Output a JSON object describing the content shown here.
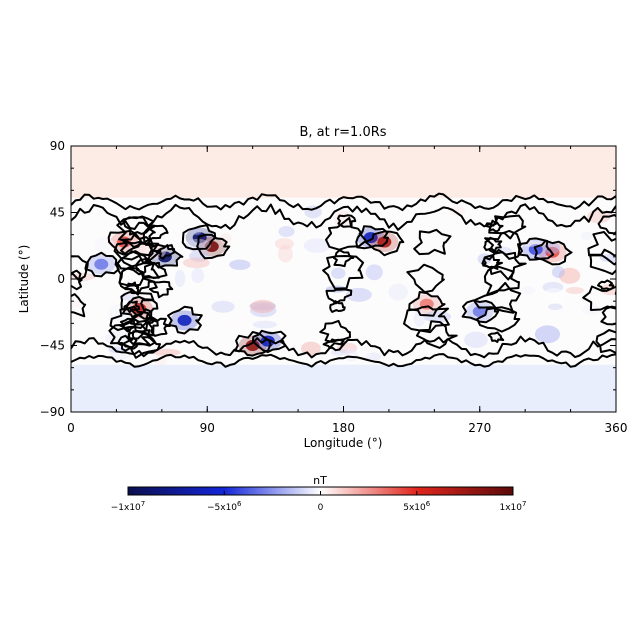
{
  "chart_data": {
    "type": "heatmap",
    "title": "B, at r=1.0Rs",
    "xlabel": "Longitude (°)",
    "ylabel": "Latitude (°)",
    "xlim": [
      0,
      360
    ],
    "ylim": [
      -90,
      90
    ],
    "xticks": [
      0,
      90,
      180,
      270,
      360
    ],
    "yticks": [
      -90,
      -45,
      0,
      45,
      90
    ],
    "colorbar": {
      "label": "nT",
      "range": [
        -10000000,
        10000000
      ],
      "ticks": [
        {
          "value": -10000000,
          "label": "−1x10",
          "exp": "7"
        },
        {
          "value": -5000000,
          "label": "−5x10",
          "exp": "6"
        },
        {
          "value": 0,
          "label": "0",
          "exp": ""
        },
        {
          "value": 5000000,
          "label": "5x10",
          "exp": "6"
        },
        {
          "value": 10000000,
          "label": "1x10",
          "exp": "7"
        }
      ],
      "colors": [
        "#0b0f4e",
        "#1326d8",
        "#ffffff",
        "#e0261d",
        "#5a0a0a"
      ]
    },
    "features": [
      {
        "lon": 62,
        "lat": 15,
        "value": -9000000
      },
      {
        "lon": 85,
        "lat": 28,
        "value": -9000000
      },
      {
        "lon": 93,
        "lat": 22,
        "value": 9000000
      },
      {
        "lon": 120,
        "lat": -45,
        "value": 8000000
      },
      {
        "lon": 130,
        "lat": -42,
        "value": -6000000
      },
      {
        "lon": 75,
        "lat": -28,
        "value": -6000000
      },
      {
        "lon": 45,
        "lat": -20,
        "value": 6000000
      },
      {
        "lon": 35,
        "lat": 25,
        "value": 4000000
      },
      {
        "lon": 198,
        "lat": 28,
        "value": -6000000
      },
      {
        "lon": 207,
        "lat": 25,
        "value": 7000000
      },
      {
        "lon": 235,
        "lat": -17,
        "value": 3000000
      },
      {
        "lon": 318,
        "lat": 18,
        "value": 4000000
      },
      {
        "lon": 307,
        "lat": 20,
        "value": -4000000
      },
      {
        "lon": 20,
        "lat": 10,
        "value": -3000000
      },
      {
        "lon": 270,
        "lat": -22,
        "value": -3000000
      },
      {
        "lon": 180,
        "lat": 80,
        "value": 1500000
      },
      {
        "lon": 180,
        "lat": -80,
        "value": -1500000
      }
    ],
    "contour_level": 0
  }
}
